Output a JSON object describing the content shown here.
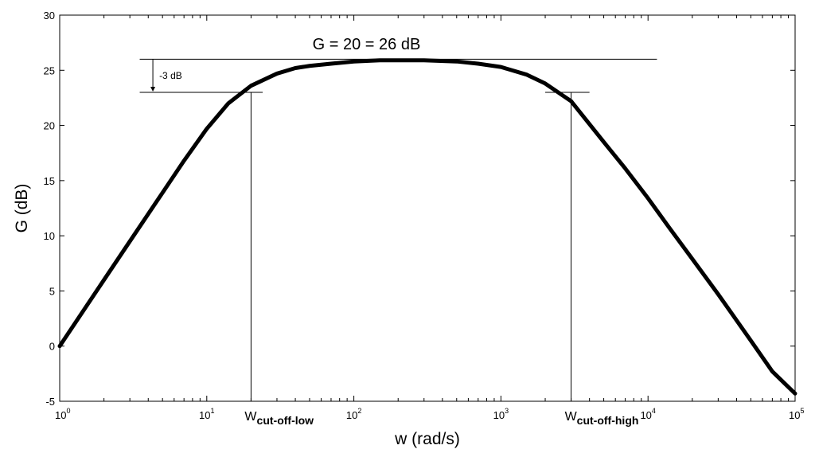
{
  "chart_data": {
    "type": "line",
    "title": "",
    "xlabel": "w (rad/s)",
    "ylabel": "G (dB)",
    "xscale": "log",
    "xlim": [
      1,
      100000
    ],
    "ylim": [
      -5,
      30
    ],
    "grid": false,
    "x_ticks": [
      {
        "base": "10",
        "exp": "0",
        "value": 1
      },
      {
        "base": "10",
        "exp": "1",
        "value": 10
      },
      {
        "base": "10",
        "exp": "2",
        "value": 100
      },
      {
        "base": "10",
        "exp": "3",
        "value": 1000
      },
      {
        "base": "10",
        "exp": "4",
        "value": 10000
      },
      {
        "base": "10",
        "exp": "5",
        "value": 100000
      }
    ],
    "y_ticks": [
      "-5",
      "0",
      "5",
      "10",
      "15",
      "20",
      "25",
      "30"
    ],
    "series": [
      {
        "color": "#000000",
        "x": [
          1,
          2,
          3,
          5,
          7,
          10,
          14,
          20,
          30,
          40,
          50,
          70,
          100,
          150,
          200,
          300,
          500,
          700,
          1000,
          1500,
          2000,
          3000,
          5000,
          7000,
          10000,
          14000,
          20000,
          30000,
          50000,
          70000,
          100000
        ],
        "y": [
          0.0,
          6.0,
          9.5,
          13.9,
          16.8,
          19.7,
          22.0,
          23.6,
          24.7,
          25.2,
          25.4,
          25.6,
          25.8,
          25.9,
          25.9,
          25.9,
          25.8,
          25.6,
          25.3,
          24.6,
          23.8,
          22.2,
          18.5,
          16.1,
          13.4,
          10.7,
          7.9,
          4.7,
          0.5,
          -2.3,
          -4.3
        ]
      }
    ],
    "annotations": {
      "gain_label": "G = 20 = 26 dB",
      "drop_label": "-3 dB",
      "cutoff_low": {
        "main": "W",
        "sub": "cut-off-low",
        "x": 20,
        "y": 23
      },
      "cutoff_high": {
        "main": "W",
        "sub": "cut-off-high",
        "x": 3000,
        "y": 23
      },
      "ref_high_db": 26,
      "ref_low_db": 23
    }
  }
}
